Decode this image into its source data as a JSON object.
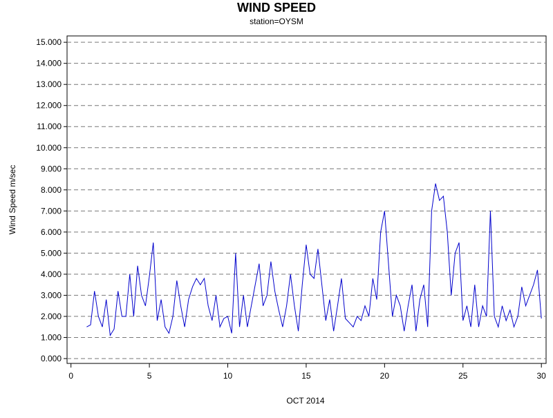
{
  "chart_data": {
    "type": "line",
    "title": "WIND SPEED",
    "subtitle": "station=OYSM",
    "xlabel": "OCT 2014",
    "ylabel": "Wind Speed m/sec",
    "xlim": [
      -0.25,
      30.3
    ],
    "ylim": [
      -0.23,
      15.3
    ],
    "xticks": [
      0,
      5,
      10,
      15,
      20,
      25,
      30
    ],
    "yticks": [
      {
        "value": 0,
        "label": "0.000"
      },
      {
        "value": 1,
        "label": "1.000"
      },
      {
        "value": 2,
        "label": "2.000"
      },
      {
        "value": 3,
        "label": "3.000"
      },
      {
        "value": 4,
        "label": "4.000"
      },
      {
        "value": 5,
        "label": "5.000"
      },
      {
        "value": 6,
        "label": "6.000"
      },
      {
        "value": 7,
        "label": "7.000"
      },
      {
        "value": 8,
        "label": "8.000"
      },
      {
        "value": 9,
        "label": "9.000"
      },
      {
        "value": 10,
        "label": "10.000"
      },
      {
        "value": 11,
        "label": "11.000"
      },
      {
        "value": 12,
        "label": "12.000"
      },
      {
        "value": 13,
        "label": "13.000"
      },
      {
        "value": 14,
        "label": "14.000"
      },
      {
        "value": 15,
        "label": "15.000"
      }
    ],
    "grid": true,
    "x": [
      1,
      1.25,
      1.5,
      1.75,
      2,
      2.25,
      2.5,
      2.75,
      3,
      3.25,
      3.5,
      3.75,
      4,
      4.25,
      4.5,
      4.75,
      5,
      5.25,
      5.5,
      5.75,
      6,
      6.25,
      6.5,
      6.75,
      7,
      7.25,
      7.5,
      7.75,
      8,
      8.25,
      8.5,
      8.75,
      9,
      9.25,
      9.5,
      9.75,
      10,
      10.25,
      10.5,
      10.75,
      11,
      11.25,
      11.5,
      11.75,
      12,
      12.25,
      12.5,
      12.75,
      13,
      13.25,
      13.5,
      13.75,
      14,
      14.25,
      14.5,
      14.75,
      15,
      15.25,
      15.5,
      15.75,
      16,
      16.25,
      16.5,
      16.75,
      17,
      17.25,
      17.5,
      17.75,
      18,
      18.25,
      18.5,
      18.75,
      19,
      19.25,
      19.5,
      19.75,
      20,
      20.25,
      20.5,
      20.75,
      21,
      21.25,
      21.5,
      21.75,
      22,
      22.25,
      22.5,
      22.75,
      23,
      23.25,
      23.5,
      23.75,
      24,
      24.25,
      24.5,
      24.75,
      25,
      25.25,
      25.5,
      25.75,
      26,
      26.25,
      26.5,
      26.75,
      27,
      27.25,
      27.5,
      27.75,
      28,
      28.25,
      28.5,
      28.75,
      29,
      29.25,
      29.5,
      29.75,
      30
    ],
    "series": [
      {
        "name": "Wind Speed",
        "color": "#0000cc",
        "values": [
          1.5,
          1.6,
          3.2,
          2.0,
          1.5,
          2.8,
          1.1,
          1.4,
          3.2,
          2.0,
          2.0,
          4.0,
          2.0,
          4.4,
          3.0,
          2.5,
          3.9,
          5.5,
          1.8,
          2.8,
          1.5,
          1.2,
          2.0,
          3.7,
          2.5,
          1.5,
          2.8,
          3.4,
          3.8,
          3.5,
          3.8,
          2.5,
          1.8,
          3.0,
          1.5,
          1.9,
          2.0,
          1.2,
          5.0,
          1.5,
          3.0,
          1.5,
          2.5,
          3.5,
          4.5,
          2.5,
          3.0,
          4.6,
          3.2,
          2.3,
          1.5,
          2.5,
          4.0,
          2.5,
          1.3,
          3.5,
          5.4,
          4.0,
          3.8,
          5.2,
          3.5,
          1.8,
          2.8,
          1.3,
          2.5,
          3.8,
          1.9,
          1.7,
          1.5,
          2.0,
          1.8,
          2.5,
          2.0,
          3.8,
          2.8,
          6.0,
          7.0,
          4.5,
          2.0,
          3.0,
          2.5,
          1.3,
          2.5,
          3.5,
          1.3,
          2.8,
          3.5,
          1.5,
          7.0,
          8.3,
          7.5,
          7.7,
          6.0,
          3.0,
          5.0,
          5.5,
          1.8,
          2.5,
          1.5,
          3.5,
          1.5,
          2.5,
          2.0,
          7.0,
          2.0,
          1.5,
          2.5,
          1.8,
          2.3,
          1.5,
          2.0,
          3.4,
          2.5,
          3.0,
          3.5,
          4.2,
          1.9
        ]
      }
    ]
  }
}
